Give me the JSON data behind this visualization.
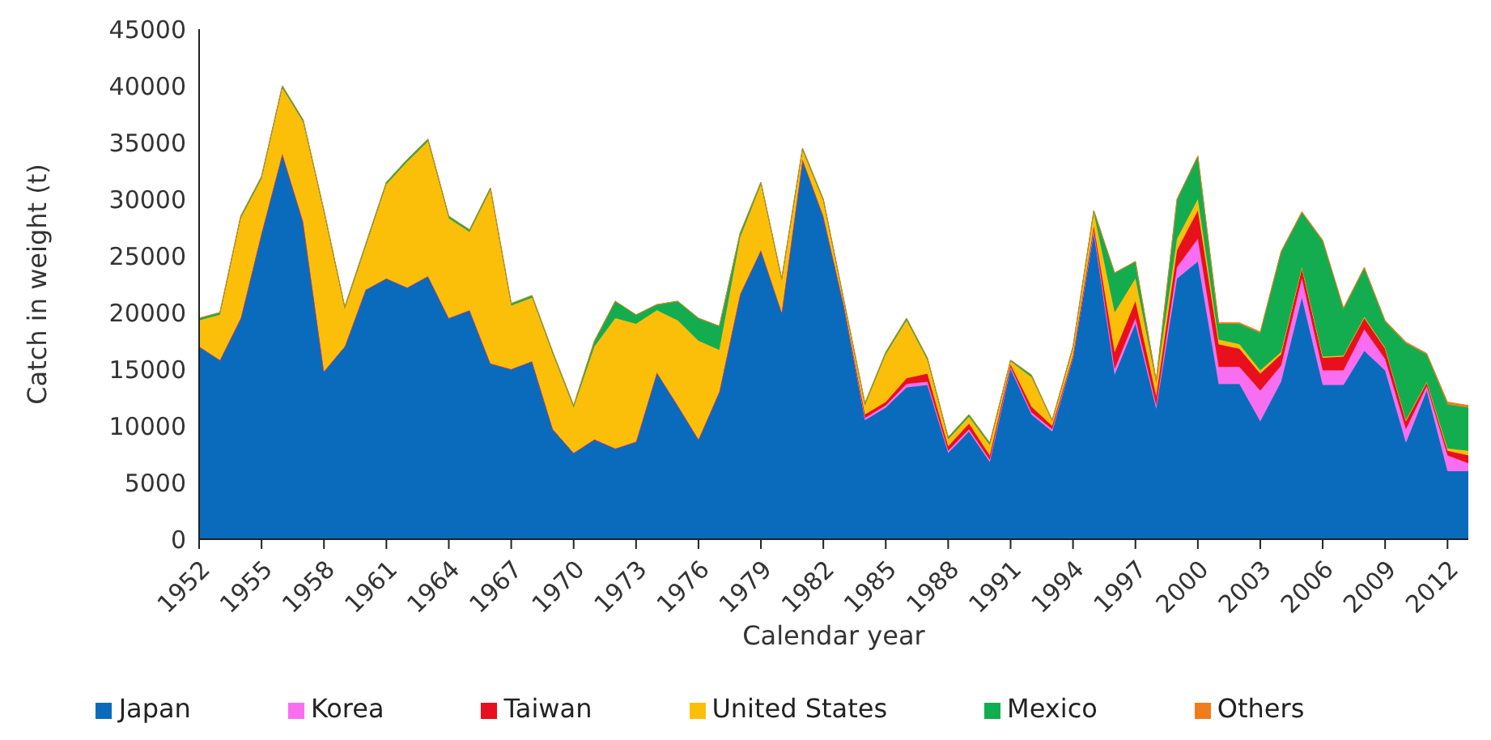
{
  "chart_data": {
    "type": "area",
    "stacked": true,
    "xlabel": "Calendar year",
    "ylabel": "Catch in weight (t)",
    "x": [
      1952,
      1953,
      1954,
      1955,
      1956,
      1957,
      1958,
      1959,
      1960,
      1961,
      1962,
      1963,
      1964,
      1965,
      1966,
      1967,
      1968,
      1969,
      1970,
      1971,
      1972,
      1973,
      1974,
      1975,
      1976,
      1977,
      1978,
      1979,
      1980,
      1981,
      1982,
      1983,
      1984,
      1985,
      1986,
      1987,
      1988,
      1989,
      1990,
      1991,
      1992,
      1993,
      1994,
      1995,
      1996,
      1997,
      1998,
      1999,
      2000,
      2001,
      2002,
      2003,
      2004,
      2005,
      2006,
      2007,
      2008,
      2009,
      2010,
      2011,
      2012,
      2013
    ],
    "xlim": [
      1952,
      2013
    ],
    "xticks": [
      1952,
      1955,
      1958,
      1961,
      1964,
      1967,
      1970,
      1973,
      1976,
      1979,
      1982,
      1985,
      1988,
      1991,
      1994,
      1997,
      2000,
      2003,
      2006,
      2009,
      2012
    ],
    "ylim": [
      0,
      45000
    ],
    "yticks": [
      0,
      5000,
      10000,
      15000,
      20000,
      25000,
      30000,
      35000,
      40000,
      45000
    ],
    "grid": false,
    "legend": "bottom",
    "series": [
      {
        "name": "Japan",
        "color": "#0a6bbd",
        "values": [
          17000,
          15800,
          19500,
          27000,
          34000,
          28000,
          14800,
          17000,
          22000,
          23000,
          22200,
          23200,
          19500,
          20200,
          15500,
          15000,
          15700,
          9700,
          7600,
          8800,
          8000,
          8600,
          14700,
          11800,
          8800,
          13000,
          21600,
          25500,
          20000,
          33500,
          28500,
          20500,
          10500,
          11600,
          13400,
          13600,
          7600,
          9500,
          6800,
          15000,
          11000,
          9500,
          16000,
          27000,
          14500,
          19000,
          11500,
          23000,
          24500,
          13700,
          13700,
          10400,
          13900,
          21300,
          13600,
          13600,
          16600,
          14900,
          8500,
          13100,
          6000,
          6000
        ]
      },
      {
        "name": "Korea",
        "color": "#f76ff0",
        "values": [
          0,
          0,
          0,
          0,
          0,
          0,
          0,
          0,
          0,
          0,
          0,
          0,
          0,
          0,
          0,
          0,
          0,
          0,
          0,
          0,
          0,
          0,
          0,
          0,
          0,
          0,
          0,
          0,
          0,
          0,
          0,
          0,
          200,
          200,
          300,
          300,
          200,
          200,
          200,
          200,
          200,
          200,
          100,
          300,
          500,
          500,
          300,
          1000,
          2000,
          1500,
          1500,
          2700,
          1400,
          1700,
          1300,
          1300,
          1900,
          1000,
          1200,
          400,
          1400,
          700
        ]
      },
      {
        "name": "Taiwan",
        "color": "#e8101c",
        "values": [
          0,
          0,
          0,
          0,
          0,
          0,
          0,
          0,
          0,
          0,
          0,
          0,
          0,
          0,
          0,
          0,
          0,
          0,
          0,
          0,
          0,
          0,
          0,
          0,
          0,
          0,
          0,
          0,
          0,
          0,
          0,
          0,
          300,
          300,
          500,
          700,
          400,
          500,
          400,
          200,
          500,
          300,
          100,
          300,
          1500,
          1500,
          800,
          1500,
          2500,
          2000,
          1600,
          1500,
          1000,
          900,
          1100,
          1200,
          1000,
          900,
          700,
          300,
          400,
          700
        ]
      },
      {
        "name": "United States",
        "color": "#fbbf0a",
        "values": [
          2300,
          4000,
          8800,
          4800,
          5800,
          8800,
          14000,
          3300,
          3800,
          8300,
          11100,
          11900,
          8800,
          6900,
          15300,
          5600,
          5600,
          6600,
          4000,
          8200,
          11500,
          10400,
          5500,
          7500,
          8700,
          3700,
          5000,
          5800,
          2800,
          800,
          1300,
          300,
          800,
          4200,
          5100,
          1200,
          600,
          600,
          900,
          300,
          2600,
          400,
          600,
          1200,
          3500,
          2000,
          1200,
          1000,
          1000,
          400,
          400,
          300,
          200,
          100,
          100,
          100,
          100,
          100,
          100,
          100,
          200,
          400
        ]
      },
      {
        "name": "Mexico",
        "color": "#13ad4f",
        "values": [
          200,
          200,
          200,
          200,
          200,
          200,
          200,
          200,
          200,
          200,
          200,
          200,
          200,
          200,
          200,
          200,
          200,
          200,
          200,
          500,
          1500,
          800,
          500,
          1700,
          2000,
          2100,
          400,
          200,
          200,
          200,
          200,
          200,
          200,
          200,
          200,
          200,
          200,
          200,
          200,
          100,
          200,
          100,
          200,
          200,
          3500,
          1500,
          200,
          3500,
          3800,
          1400,
          1800,
          3300,
          8800,
          4800,
          10200,
          4100,
          4300,
          2300,
          6800,
          2400,
          3900,
          3800
        ]
      },
      {
        "name": "Others",
        "color": "#f07d1a",
        "values": [
          0,
          0,
          0,
          0,
          0,
          0,
          0,
          0,
          0,
          0,
          0,
          0,
          0,
          0,
          0,
          0,
          0,
          0,
          0,
          0,
          0,
          0,
          0,
          0,
          0,
          0,
          0,
          0,
          0,
          0,
          0,
          0,
          0,
          0,
          0,
          0,
          0,
          0,
          0,
          0,
          0,
          0,
          0,
          0,
          0,
          0,
          0,
          0,
          0,
          100,
          100,
          100,
          100,
          100,
          100,
          100,
          100,
          100,
          100,
          100,
          200,
          200
        ]
      }
    ]
  }
}
